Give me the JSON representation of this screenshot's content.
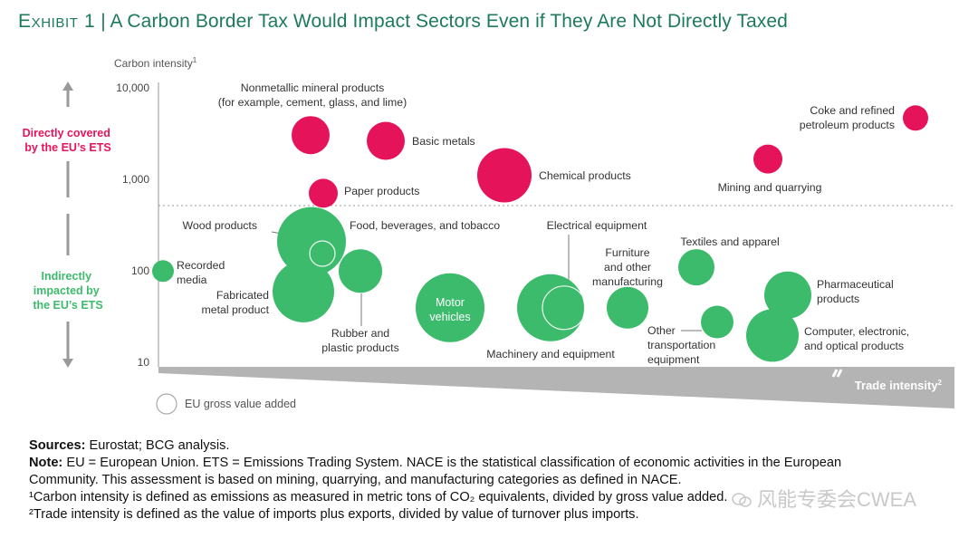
{
  "title": {
    "exhibit": "Exhibit 1",
    "separator": " | ",
    "text": "A Carbon Border Tax Would Impact Sectors Even if They Are Not Directly Taxed"
  },
  "colors": {
    "direct": "#e5145a",
    "indirect": "#3dbb6c",
    "title": "#1d7a5c",
    "wedge": "#b4b4b4",
    "axis": "#a6a6a6"
  },
  "chart_data": {
    "type": "scatter",
    "y_axis": {
      "label": "Carbon intensity",
      "label_sup": "1",
      "scale": "log",
      "range": [
        10,
        10000
      ],
      "ticks": [
        "10",
        "100",
        "1,000",
        "10,000"
      ]
    },
    "x_axis": {
      "label": "Trade intensity",
      "label_sup": "2"
    },
    "y_threshold": 500,
    "groups": [
      {
        "label_lines": [
          "Directly covered",
          "by the EU’s ETS"
        ]
      },
      {
        "label_lines": [
          "Indirectly",
          "impacted by",
          "the EU’s ETS"
        ]
      }
    ],
    "size_legend": "EU gross value added",
    "series": [
      {
        "name": "Nonmetallic mineral products",
        "group": "direct",
        "y": 3000,
        "label_lines": [
          "Nonmetallic mineral products",
          "(for example, cement, glass, and lime)"
        ]
      },
      {
        "name": "Basic metals",
        "group": "direct",
        "y": 2600,
        "label_lines": [
          "Basic metals"
        ]
      },
      {
        "name": "Paper products",
        "group": "direct",
        "y": 700,
        "label_lines": [
          "Paper products"
        ]
      },
      {
        "name": "Chemical products",
        "group": "direct",
        "y": 1100,
        "label_lines": [
          "Chemical products"
        ]
      },
      {
        "name": "Coke and refined petroleum products",
        "group": "direct",
        "y": 4600,
        "label_lines": [
          "Coke and refined",
          "petroleum products"
        ]
      },
      {
        "name": "Mining and quarrying",
        "group": "direct",
        "y": 1650,
        "label_lines": [
          "Mining and quarrying"
        ]
      },
      {
        "name": "Recorded media",
        "group": "indirect",
        "y": 100,
        "label_lines": [
          "Recorded",
          "media"
        ]
      },
      {
        "name": "Food, beverages, and tobacco",
        "group": "indirect",
        "y": 210,
        "label_lines": [
          "Food, beverages, and tobacco"
        ]
      },
      {
        "name": "Wood products",
        "group": "indirect",
        "y": 155,
        "label_lines": [
          "Wood products"
        ]
      },
      {
        "name": "Fabricated metal product",
        "group": "indirect",
        "y": 60,
        "label_lines": [
          "Fabricated",
          "metal product"
        ]
      },
      {
        "name": "Rubber and plastic products",
        "group": "indirect",
        "y": 100,
        "label_lines": [
          "Rubber and",
          "plastic products"
        ]
      },
      {
        "name": "Motor vehicles",
        "group": "indirect",
        "y": 40,
        "label_lines": [
          "Motor",
          "vehicles"
        ]
      },
      {
        "name": "Machinery and equipment",
        "group": "indirect",
        "y": 40,
        "label_lines": [
          "Machinery and equipment"
        ]
      },
      {
        "name": "Electrical equipment",
        "group": "indirect",
        "y": 40,
        "label_lines": [
          "Electrical equipment"
        ]
      },
      {
        "name": "Furniture and other manufacturing",
        "group": "indirect",
        "y": 40,
        "label_lines": [
          "Furniture",
          "and other",
          "manufacturing"
        ]
      },
      {
        "name": "Textiles and apparel",
        "group": "indirect",
        "y": 110,
        "label_lines": [
          "Textiles and apparel"
        ]
      },
      {
        "name": "Other transportation equipment",
        "group": "indirect",
        "y": 28,
        "label_lines": [
          "Other",
          "transportation",
          "equipment"
        ]
      },
      {
        "name": "Pharmaceutical products",
        "group": "indirect",
        "y": 55,
        "label_lines": [
          "Pharmaceutical",
          "products"
        ]
      },
      {
        "name": "Computer, electronic, and optical products",
        "group": "indirect",
        "y": 20,
        "label_lines": [
          "Computer, electronic,",
          "and optical products"
        ]
      }
    ]
  },
  "notes": {
    "sources_label": "Sources:",
    "sources_text": " Eurostat; BCG analysis.",
    "note_label": "Note:",
    "note_line1": " EU = European Union. ETS = Emissions Trading System. NACE is the statistical classification of economic activities in the European",
    "note_line2": "Community. This assessment is based on mining, quarrying, and manufacturing categories as defined in NACE.",
    "footnote1": "¹Carbon intensity is defined as emissions as measured in metric tons of CO₂ equivalents, divided by gross value added.",
    "footnote2": "²Trade intensity is defined as the value of imports plus exports, divided by value of turnover plus imports."
  },
  "watermark": "风能专委会CWEA"
}
